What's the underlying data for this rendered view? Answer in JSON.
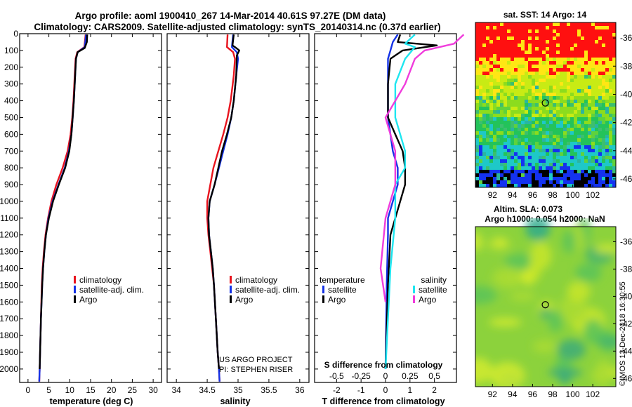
{
  "title_line1": "Argo profile: aoml 1900410_267 14-Mar-2014 40.61S 97.27E (DM data)",
  "title_line2": "Climatology: CARS2009. Satellite-adjusted climatology: synTS_20140314.nc (0.37d earlier)",
  "sst_title": "sat. SST: 14 Argo: 14",
  "alt_title1": "Altim. SLA: 0.073",
  "alt_title2": "Argo h1000: 0.054 h2000: NaN",
  "credit": "©IMOS 13-Dec-2018 16:30:55",
  "project_line1": "US ARGO PROJECT",
  "project_line2": "PI: STEPHEN RISER",
  "colors": {
    "climatology": "#e8141e",
    "satellite": "#1432e6",
    "argo": "#000000",
    "sal_satellite": "#1ee6f0",
    "sal_argo": "#f03cdc"
  },
  "chart_data": [
    {
      "type": "line",
      "title": "",
      "xlabel": "temperature (deg C)",
      "ylabel": "",
      "xlim": [
        -2,
        32
      ],
      "ylim": [
        2080,
        0
      ],
      "xticks": [
        "0",
        "5",
        "10",
        "15",
        "20",
        "25",
        "30"
      ],
      "xtick_values": [
        0,
        5,
        10,
        15,
        20,
        25,
        30
      ],
      "yticks": [
        "0",
        "100",
        "200",
        "300",
        "400",
        "500",
        "600",
        "700",
        "800",
        "900",
        "1000",
        "1100",
        "1200",
        "1300",
        "1400",
        "1500",
        "1600",
        "1700",
        "1800",
        "1900",
        "2000"
      ],
      "ytick_values": [
        0,
        100,
        200,
        300,
        400,
        500,
        600,
        700,
        800,
        900,
        1000,
        1100,
        1200,
        1300,
        1400,
        1500,
        1600,
        1700,
        1800,
        1900,
        2000
      ],
      "legend": [
        "climatology",
        "satellite-adj. clim.",
        "Argo"
      ],
      "legend_loc": "lower-right",
      "series": [
        {
          "name": "climatology",
          "color": "#e8141e",
          "points": [
            [
              13.8,
              5
            ],
            [
              13.5,
              80
            ],
            [
              11.8,
              110
            ],
            [
              11.4,
              150
            ],
            [
              11.2,
              250
            ],
            [
              10.9,
              400
            ],
            [
              10.6,
              500
            ],
            [
              10.2,
              600
            ],
            [
              9.5,
              700
            ],
            [
              8.3,
              800
            ],
            [
              6.8,
              900
            ],
            [
              5.6,
              1000
            ],
            [
              4.8,
              1100
            ],
            [
              4.2,
              1200
            ],
            [
              3.8,
              1300
            ],
            [
              3.5,
              1400
            ],
            [
              3.3,
              1500
            ],
            [
              3.1,
              1700
            ],
            [
              2.9,
              1900
            ],
            [
              2.8,
              2000
            ],
            [
              2.7,
              2075
            ]
          ]
        },
        {
          "name": "satellite-adj. clim.",
          "color": "#1432e6",
          "points": [
            [
              13.9,
              5
            ],
            [
              13.6,
              80
            ],
            [
              11.9,
              110
            ],
            [
              11.5,
              150
            ],
            [
              11.3,
              250
            ],
            [
              11.0,
              400
            ],
            [
              10.7,
              500
            ],
            [
              10.4,
              600
            ],
            [
              9.8,
              700
            ],
            [
              8.8,
              800
            ],
            [
              7.3,
              900
            ],
            [
              5.9,
              1000
            ],
            [
              4.9,
              1100
            ],
            [
              4.3,
              1200
            ],
            [
              3.9,
              1300
            ],
            [
              3.6,
              1400
            ],
            [
              3.4,
              1500
            ],
            [
              3.1,
              1700
            ],
            [
              2.9,
              1900
            ],
            [
              2.8,
              2000
            ],
            [
              2.7,
              2075
            ]
          ]
        },
        {
          "name": "Argo",
          "color": "#000000",
          "points": [
            [
              14.2,
              5
            ],
            [
              14.1,
              50
            ],
            [
              13.6,
              85
            ],
            [
              11.9,
              110
            ],
            [
              11.5,
              150
            ],
            [
              11.3,
              250
            ],
            [
              11.0,
              400
            ],
            [
              10.7,
              500
            ],
            [
              10.4,
              600
            ],
            [
              9.9,
              700
            ],
            [
              8.9,
              800
            ],
            [
              7.4,
              900
            ],
            [
              6.0,
              1000
            ],
            [
              5.0,
              1100
            ],
            [
              4.3,
              1200
            ],
            [
              3.9,
              1300
            ],
            [
              3.6,
              1400
            ],
            [
              3.4,
              1500
            ],
            [
              3.1,
              1700
            ],
            [
              2.9,
              1900
            ],
            [
              2.8,
              2000
            ]
          ]
        }
      ]
    },
    {
      "type": "line",
      "xlabel": "salinity",
      "xlim": [
        33.85,
        36.15
      ],
      "ylim": [
        2080,
        0
      ],
      "xticks": [
        "34",
        "34.5",
        "35",
        "35.5",
        "36"
      ],
      "xtick_values": [
        34,
        34.5,
        35,
        35.5,
        36
      ],
      "legend": [
        "climatology",
        "satellite-adj. clim.",
        "Argo"
      ],
      "legend_loc": "lower-right",
      "series": [
        {
          "name": "climatology",
          "color": "#e8141e",
          "points": [
            [
              34.83,
              5
            ],
            [
              34.82,
              80
            ],
            [
              34.92,
              110
            ],
            [
              34.95,
              150
            ],
            [
              34.93,
              250
            ],
            [
              34.88,
              400
            ],
            [
              34.83,
              500
            ],
            [
              34.76,
              600
            ],
            [
              34.68,
              700
            ],
            [
              34.6,
              800
            ],
            [
              34.55,
              900
            ],
            [
              34.5,
              1000
            ],
            [
              34.5,
              1100
            ],
            [
              34.52,
              1200
            ],
            [
              34.55,
              1300
            ],
            [
              34.58,
              1400
            ],
            [
              34.61,
              1500
            ],
            [
              34.64,
              1700
            ],
            [
              34.67,
              1900
            ],
            [
              34.69,
              2000
            ],
            [
              34.7,
              2075
            ]
          ]
        },
        {
          "name": "satellite-adj. clim.",
          "color": "#1432e6",
          "points": [
            [
              34.92,
              5
            ],
            [
              34.9,
              80
            ],
            [
              34.98,
              110
            ],
            [
              35.0,
              150
            ],
            [
              34.97,
              250
            ],
            [
              34.93,
              400
            ],
            [
              34.89,
              500
            ],
            [
              34.83,
              600
            ],
            [
              34.76,
              700
            ],
            [
              34.69,
              800
            ],
            [
              34.62,
              900
            ],
            [
              34.54,
              1000
            ],
            [
              34.52,
              1100
            ],
            [
              34.53,
              1200
            ],
            [
              34.56,
              1300
            ],
            [
              34.59,
              1400
            ],
            [
              34.61,
              1500
            ],
            [
              34.64,
              1700
            ],
            [
              34.67,
              1900
            ],
            [
              34.69,
              2000
            ],
            [
              34.7,
              2075
            ]
          ]
        },
        {
          "name": "Argo",
          "color": "#000000",
          "points": [
            [
              34.93,
              5
            ],
            [
              34.91,
              70
            ],
            [
              34.95,
              80
            ],
            [
              35.02,
              100
            ],
            [
              34.98,
              130
            ],
            [
              34.97,
              250
            ],
            [
              34.93,
              400
            ],
            [
              34.89,
              500
            ],
            [
              34.82,
              600
            ],
            [
              34.74,
              700
            ],
            [
              34.68,
              800
            ],
            [
              34.62,
              900
            ],
            [
              34.54,
              1000
            ],
            [
              34.52,
              1100
            ],
            [
              34.53,
              1200
            ],
            [
              34.56,
              1300
            ],
            [
              34.59,
              1400
            ],
            [
              34.61,
              1500
            ],
            [
              34.64,
              1700
            ],
            [
              34.67,
              1900
            ],
            [
              34.69,
              2000
            ]
          ]
        }
      ]
    },
    {
      "type": "line",
      "xlabel": "T difference from climatology",
      "xlabel_top": "S difference from climatology",
      "xlim": [
        -2.9,
        2.9
      ],
      "ylim": [
        2080,
        0
      ],
      "xticks": [
        "-2",
        "-1",
        "0",
        "1",
        "2"
      ],
      "xtick_values": [
        -2,
        -1,
        0,
        1,
        2
      ],
      "xticks_top": [
        "-0.5",
        "-0.25",
        "0",
        "0.25",
        "0.5"
      ],
      "xtick_top_values": [
        -0.5,
        -0.25,
        0,
        0.25,
        0.5
      ],
      "legend_left_title": "temperature",
      "legend_right_title": "salinity",
      "legend_left": [
        "satellite",
        "Argo"
      ],
      "legend_right": [
        "satellite",
        "Argo"
      ],
      "series": [
        {
          "name": "temperature satellite",
          "color": "#1432e6",
          "points": [
            [
              0.5,
              5
            ],
            [
              0.3,
              50
            ],
            [
              0.2,
              100
            ],
            [
              0.1,
              150
            ],
            [
              0.1,
              300
            ],
            [
              0.1,
              500
            ],
            [
              0.2,
              600
            ],
            [
              0.3,
              700
            ],
            [
              0.5,
              800
            ],
            [
              0.5,
              900
            ],
            [
              0.3,
              1000
            ],
            [
              0.1,
              1100
            ],
            [
              0.1,
              1200
            ],
            [
              0.05,
              1500
            ],
            [
              0.0,
              2000
            ]
          ]
        },
        {
          "name": "temperature Argo",
          "color": "#000000",
          "points": [
            [
              0.6,
              5
            ],
            [
              0.5,
              50
            ],
            [
              2.1,
              70
            ],
            [
              0.7,
              100
            ],
            [
              0.2,
              150
            ],
            [
              0.1,
              300
            ],
            [
              0.1,
              500
            ],
            [
              0.4,
              600
            ],
            [
              0.7,
              700
            ],
            [
              0.8,
              800
            ],
            [
              0.8,
              900
            ],
            [
              0.6,
              1000
            ],
            [
              0.4,
              1100
            ],
            [
              0.2,
              1200
            ],
            [
              0.1,
              1500
            ],
            [
              0.0,
              2000
            ]
          ]
        },
        {
          "name": "salinity satellite",
          "color": "#1ee6f0",
          "points": [
            [
              0.3,
              5
            ],
            [
              0.2,
              60
            ],
            [
              0.3,
              80
            ],
            [
              0.2,
              150
            ],
            [
              0.1,
              300
            ],
            [
              0.1,
              500
            ],
            [
              0.2,
              700
            ],
            [
              0.2,
              800
            ],
            [
              0.1,
              900
            ],
            [
              0.1,
              1100
            ],
            [
              0.05,
              1400
            ],
            [
              0.0,
              2000
            ]
          ]
        },
        {
          "name": "salinity Argo",
          "color": "#f03cdc",
          "points": [
            [
              0.8,
              5
            ],
            [
              0.7,
              60
            ],
            [
              0.4,
              100
            ],
            [
              0.3,
              150
            ],
            [
              0.2,
              300
            ],
            [
              0.0,
              500
            ],
            [
              0.1,
              700
            ],
            [
              0.1,
              900
            ],
            [
              0.0,
              1100
            ],
            [
              -0.05,
              1400
            ],
            [
              0.0,
              1600
            ]
          ]
        }
      ]
    },
    {
      "type": "heatmap",
      "title": "sat. SST: 14 Argo: 14",
      "xlim": [
        90.3,
        104.3
      ],
      "ylim": [
        -46.6,
        -34.9
      ],
      "xticks": [
        "92",
        "94",
        "96",
        "98",
        "100",
        "102"
      ],
      "xtick_values": [
        92,
        94,
        96,
        98,
        100,
        102
      ],
      "yticks": [
        "-36",
        "-38",
        "-40",
        "-42",
        "-44",
        "-46"
      ],
      "ytick_values": [
        -36,
        -38,
        -40,
        -42,
        -44,
        -46
      ],
      "marker": {
        "lon": 97.27,
        "lat": -40.61
      },
      "bands": [
        {
          "lat_from": -34.9,
          "lat_to": -37.3,
          "color": "#ff1010"
        },
        {
          "lat_from": -37.3,
          "lat_to": -38.5,
          "color": "#ffe614"
        },
        {
          "lat_from": -38.5,
          "lat_to": -40.0,
          "color": "#c8eb14"
        },
        {
          "lat_from": -40.0,
          "lat_to": -41.6,
          "color": "#8cdc1e"
        },
        {
          "lat_from": -41.6,
          "lat_to": -43.5,
          "color": "#23c35a"
        },
        {
          "lat_from": -43.5,
          "lat_to": -45.2,
          "color": "#1ec8c8"
        },
        {
          "lat_from": -45.2,
          "lat_to": -46.6,
          "color": "#1432f0"
        }
      ]
    },
    {
      "type": "heatmap",
      "title": "Altim. SLA: 0.073",
      "xlim": [
        90.3,
        104.3
      ],
      "ylim": [
        -46.6,
        -34.9
      ],
      "xticks": [
        "92",
        "94",
        "96",
        "98",
        "100",
        "102"
      ],
      "xtick_values": [
        92,
        94,
        96,
        98,
        100,
        102
      ],
      "yticks": [
        "-36",
        "-38",
        "-40",
        "-42",
        "-44",
        "-46"
      ],
      "ytick_values": [
        -36,
        -38,
        -40,
        -42,
        -44,
        -46
      ],
      "marker": {
        "lon": 97.27,
        "lat": -40.61
      }
    }
  ]
}
